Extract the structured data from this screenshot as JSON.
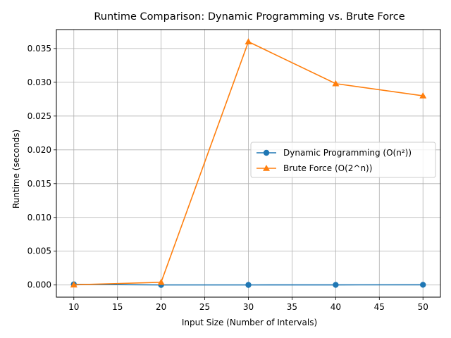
{
  "chart_data": {
    "type": "line",
    "title": "Runtime Comparison: Dynamic Programming vs. Brute Force",
    "xlabel": "Input Size (Number of Intervals)",
    "ylabel": "Runtime (seconds)",
    "x": [
      10,
      20,
      30,
      40,
      50
    ],
    "xlim": [
      8,
      52
    ],
    "ylim": [
      -0.0018,
      0.0378
    ],
    "xticks": [
      10,
      15,
      20,
      25,
      30,
      35,
      40,
      45,
      50
    ],
    "yticks": [
      0.0,
      0.005,
      0.01,
      0.015,
      0.02,
      0.025,
      0.03,
      0.035
    ],
    "ytick_decimals": 3,
    "grid": true,
    "legend_position": "center-right",
    "series": [
      {
        "name": "Dynamic Programming (O(n²))",
        "values": [
          0.0001,
          1e-05,
          1e-05,
          2e-05,
          3e-05
        ],
        "color": "#1f77b4",
        "marker": "circle"
      },
      {
        "name": "Brute Force (O(2^n))",
        "values": [
          3e-05,
          0.0004,
          0.036,
          0.0298,
          0.028
        ],
        "color": "#ff7f0e",
        "marker": "triangle"
      }
    ]
  }
}
